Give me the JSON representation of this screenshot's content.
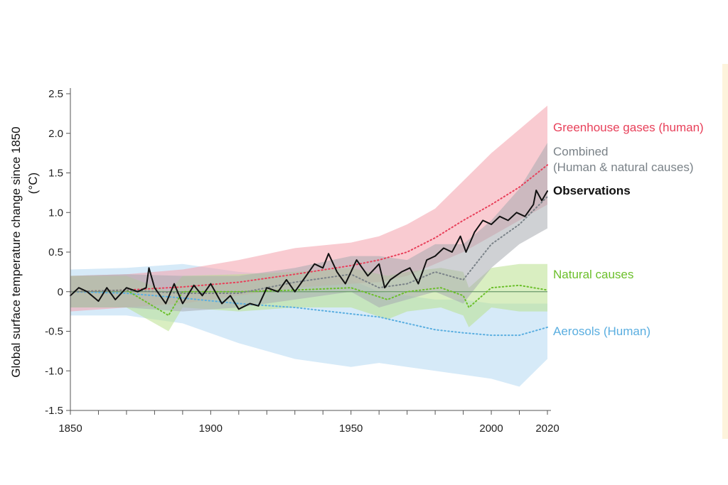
{
  "chart_data": {
    "type": "line",
    "title": "",
    "ylabel_line1": "Global surface temperature change since 1850",
    "ylabel_line2": "(°C)",
    "xlim": [
      1850,
      2020
    ],
    "ylim": [
      -1.5,
      2.5
    ],
    "yticks": [
      2.5,
      2.0,
      1.5,
      1.0,
      0.5,
      0,
      -0.5,
      -1.0,
      -1.5
    ],
    "ytick_labels": [
      "2.5",
      "2.0",
      "1.5",
      "1.0",
      "0.5",
      "0",
      "-0.5",
      "-1.0",
      "-1.5"
    ],
    "xtick_labels": [
      {
        "x": 1850,
        "label": "1850"
      },
      {
        "x": 1900,
        "label": "1900"
      },
      {
        "x": 1950,
        "label": "1950"
      },
      {
        "x": 2000,
        "label": "2000"
      },
      {
        "x": 2020,
        "label": "2020"
      }
    ],
    "minor_xticks": [
      1850,
      1860,
      1870,
      1880,
      1890,
      1900,
      1910,
      1920,
      1930,
      1940,
      1950,
      1960,
      1970,
      1980,
      1990,
      2000,
      2010,
      2020
    ],
    "zero_line": true,
    "grid": false,
    "legend_placement": "right of plot, beside series ends",
    "series": [
      {
        "name": "Greenhouse gases (human)",
        "label": "Greenhouse gases (human)",
        "color": "#e8405a",
        "band_color": "#f4a0ab",
        "style": "dotted",
        "x": [
          1850,
          1870,
          1890,
          1910,
          1930,
          1950,
          1960,
          1970,
          1980,
          1990,
          2000,
          2010,
          2020
        ],
        "y": [
          0.0,
          0.02,
          0.06,
          0.12,
          0.22,
          0.33,
          0.4,
          0.5,
          0.68,
          0.9,
          1.1,
          1.32,
          1.6
        ],
        "low": [
          -0.25,
          -0.2,
          -0.15,
          -0.05,
          0.05,
          0.1,
          0.12,
          0.2,
          0.35,
          0.5,
          0.7,
          0.9,
          1.1
        ],
        "high": [
          0.2,
          0.22,
          0.28,
          0.4,
          0.55,
          0.62,
          0.7,
          0.85,
          1.05,
          1.4,
          1.75,
          2.05,
          2.35
        ]
      },
      {
        "name": "Combined (Human & natural causes)",
        "label_line1": "Combined",
        "label_line2": "(Human & natural causes)",
        "color": "#7a8288",
        "band_color": "#a8acb0",
        "style": "dotted",
        "x": [
          1850,
          1870,
          1890,
          1910,
          1930,
          1950,
          1960,
          1970,
          1980,
          1990,
          2000,
          2010,
          2020
        ],
        "y": [
          0.0,
          0.02,
          -0.02,
          -0.02,
          0.12,
          0.22,
          0.05,
          0.1,
          0.25,
          0.15,
          0.6,
          0.85,
          1.2
        ],
        "low": [
          -0.2,
          -0.2,
          -0.25,
          -0.2,
          -0.1,
          0.0,
          -0.2,
          -0.1,
          0.0,
          -0.15,
          0.3,
          0.6,
          0.8
        ],
        "high": [
          0.2,
          0.22,
          0.2,
          0.2,
          0.3,
          0.45,
          0.45,
          0.4,
          0.6,
          0.6,
          0.9,
          1.3,
          1.88
        ]
      },
      {
        "name": "Observations",
        "label": "Observations",
        "color": "#111111",
        "style": "solid",
        "x": [
          1850,
          1853,
          1856,
          1860,
          1863,
          1866,
          1870,
          1874,
          1877,
          1878,
          1880,
          1884,
          1887,
          1890,
          1894,
          1897,
          1900,
          1904,
          1907,
          1910,
          1914,
          1917,
          1920,
          1924,
          1927,
          1930,
          1934,
          1937,
          1940,
          1942,
          1945,
          1948,
          1952,
          1956,
          1960,
          1962,
          1964,
          1968,
          1971,
          1974,
          1977,
          1980,
          1983,
          1986,
          1989,
          1991,
          1994,
          1997,
          2000,
          2003,
          2006,
          2009,
          2012,
          2015,
          2016,
          2018,
          2020
        ],
        "y": [
          -0.05,
          0.05,
          0.0,
          -0.12,
          0.05,
          -0.1,
          0.05,
          0.0,
          0.05,
          0.3,
          0.05,
          -0.15,
          0.1,
          -0.15,
          0.08,
          -0.05,
          0.1,
          -0.15,
          -0.05,
          -0.22,
          -0.15,
          -0.18,
          0.05,
          0.0,
          0.15,
          0.0,
          0.2,
          0.35,
          0.3,
          0.48,
          0.25,
          0.1,
          0.4,
          0.2,
          0.35,
          0.05,
          0.15,
          0.25,
          0.3,
          0.1,
          0.4,
          0.45,
          0.55,
          0.5,
          0.7,
          0.5,
          0.75,
          0.9,
          0.85,
          0.95,
          0.9,
          1.0,
          0.95,
          1.1,
          1.28,
          1.15,
          1.27
        ]
      },
      {
        "name": "Natural causes",
        "label": "Natural causes",
        "color": "#6bbf2a",
        "band_color": "#b9e08e",
        "style": "dotted",
        "x": [
          1850,
          1870,
          1885,
          1890,
          1910,
          1930,
          1950,
          1963,
          1970,
          1982,
          1990,
          1992,
          2000,
          2010,
          2020
        ],
        "y": [
          0.0,
          0.02,
          -0.3,
          0.0,
          0.0,
          0.02,
          0.05,
          -0.1,
          0.0,
          0.05,
          -0.05,
          -0.2,
          0.05,
          0.08,
          0.02
        ],
        "low": [
          -0.2,
          -0.2,
          -0.5,
          -0.2,
          -0.25,
          -0.2,
          -0.2,
          -0.35,
          -0.25,
          -0.2,
          -0.3,
          -0.45,
          -0.2,
          -0.25,
          -0.25
        ],
        "high": [
          0.2,
          0.2,
          0.0,
          0.2,
          0.22,
          0.25,
          0.3,
          0.2,
          0.25,
          0.3,
          0.25,
          0.05,
          0.3,
          0.35,
          0.35
        ]
      },
      {
        "name": "Aerosols (Human)",
        "label": "Aerosols (Human)",
        "color": "#5aaee0",
        "band_color": "#b5d8f2",
        "style": "dotted",
        "x": [
          1850,
          1870,
          1890,
          1910,
          1930,
          1950,
          1960,
          1970,
          1980,
          1990,
          2000,
          2010,
          2020
        ],
        "y": [
          0.0,
          -0.02,
          -0.08,
          -0.15,
          -0.2,
          -0.28,
          -0.32,
          -0.4,
          -0.48,
          -0.52,
          -0.55,
          -0.55,
          -0.45
        ],
        "low": [
          -0.3,
          -0.3,
          -0.4,
          -0.65,
          -0.85,
          -0.95,
          -0.9,
          -0.95,
          -1.0,
          -1.05,
          -1.1,
          -1.2,
          -0.85
        ],
        "high": [
          0.28,
          0.3,
          0.35,
          0.25,
          0.2,
          0.15,
          0.0,
          -0.05,
          -0.1,
          -0.1,
          -0.15,
          -0.15,
          -0.15
        ]
      }
    ]
  }
}
